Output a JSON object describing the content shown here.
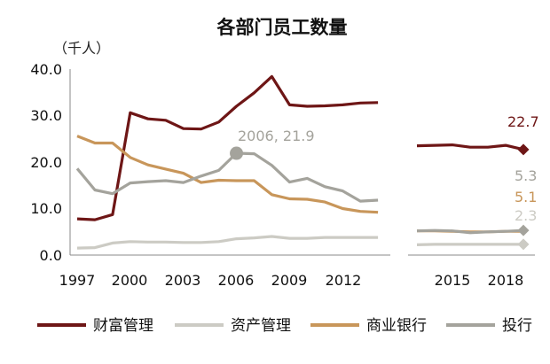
{
  "chart_data": {
    "type": "line",
    "title": "各部门员工数量",
    "unit_label": "（千人）",
    "ylim": [
      0,
      40
    ],
    "y_ticks": [
      "0.0",
      "10.0",
      "20.0",
      "30.0",
      "40.0"
    ],
    "x_ticks": [
      "1997",
      "2000",
      "2003",
      "2006",
      "2009",
      "2012",
      "2015",
      "2018"
    ],
    "grid": false,
    "legend_placement": "bottom",
    "series": [
      {
        "name": "财富管理",
        "color": "#6e1616",
        "segments": [
          [
            [
              1997,
              7.8
            ],
            [
              1998,
              7.6
            ],
            [
              1999,
              8.7
            ],
            [
              2000,
              30.6
            ],
            [
              2001,
              29.3
            ],
            [
              2002,
              29.0
            ],
            [
              2003,
              27.2
            ],
            [
              2004,
              27.1
            ],
            [
              2005,
              28.6
            ],
            [
              2006,
              32.0
            ],
            [
              2007,
              34.9
            ],
            [
              2008,
              38.4
            ],
            [
              2009,
              32.3
            ],
            [
              2010,
              32.0
            ],
            [
              2011,
              32.1
            ],
            [
              2012,
              32.3
            ],
            [
              2013,
              32.7
            ],
            [
              2014,
              32.8
            ]
          ],
          [
            [
              2014,
              23.5
            ],
            [
              2015,
              23.6
            ],
            [
              2016,
              23.7
            ],
            [
              2017,
              23.2
            ],
            [
              2018,
              23.2
            ],
            [
              2019,
              23.6
            ],
            [
              2020,
              22.7
            ]
          ]
        ],
        "end_marker": "diamond"
      },
      {
        "name": "资产管理",
        "color": "#cccbc4",
        "segments": [
          [
            [
              1997,
              1.5
            ],
            [
              1998,
              1.6
            ],
            [
              1999,
              2.6
            ],
            [
              2000,
              2.9
            ],
            [
              2001,
              2.8
            ],
            [
              2002,
              2.8
            ],
            [
              2003,
              2.7
            ],
            [
              2004,
              2.7
            ],
            [
              2005,
              2.9
            ],
            [
              2006,
              3.5
            ],
            [
              2007,
              3.7
            ],
            [
              2008,
              4.0
            ],
            [
              2009,
              3.6
            ],
            [
              2010,
              3.6
            ],
            [
              2011,
              3.8
            ],
            [
              2012,
              3.8
            ],
            [
              2013,
              3.8
            ],
            [
              2014,
              3.8
            ]
          ],
          [
            [
              2014,
              2.2
            ],
            [
              2015,
              2.3
            ],
            [
              2016,
              2.3
            ],
            [
              2017,
              2.3
            ],
            [
              2018,
              2.3
            ],
            [
              2019,
              2.3
            ],
            [
              2020,
              2.3
            ]
          ]
        ],
        "end_marker": "diamond"
      },
      {
        "name": "商业银行",
        "color": "#c8965a",
        "segments": [
          [
            [
              1997,
              25.6
            ],
            [
              1998,
              24.1
            ],
            [
              1999,
              24.1
            ],
            [
              2000,
              21.0
            ],
            [
              2001,
              19.4
            ],
            [
              2002,
              18.5
            ],
            [
              2003,
              17.6
            ],
            [
              2004,
              15.6
            ],
            [
              2005,
              16.1
            ],
            [
              2006,
              16.0
            ],
            [
              2007,
              16.0
            ],
            [
              2008,
              13.0
            ],
            [
              2009,
              12.1
            ],
            [
              2010,
              12.0
            ],
            [
              2011,
              11.4
            ],
            [
              2012,
              10.0
            ],
            [
              2013,
              9.4
            ],
            [
              2014,
              9.2
            ]
          ],
          [
            [
              2014,
              5.2
            ],
            [
              2015,
              5.2
            ],
            [
              2016,
              5.1
            ],
            [
              2017,
              5.0
            ],
            [
              2018,
              5.0
            ],
            [
              2019,
              5.1
            ],
            [
              2020,
              5.1
            ]
          ]
        ]
      },
      {
        "name": "投行",
        "color": "#a4a39c",
        "segments": [
          [
            [
              1997,
              18.6
            ],
            [
              1998,
              14.0
            ],
            [
              1999,
              13.2
            ],
            [
              2000,
              15.5
            ],
            [
              2001,
              15.8
            ],
            [
              2002,
              16.0
            ],
            [
              2003,
              15.6
            ],
            [
              2004,
              17.0
            ],
            [
              2005,
              18.2
            ],
            [
              2006,
              21.9
            ],
            [
              2007,
              21.8
            ],
            [
              2008,
              19.3
            ],
            [
              2009,
              15.7
            ],
            [
              2010,
              16.5
            ],
            [
              2011,
              14.7
            ],
            [
              2012,
              13.8
            ],
            [
              2013,
              11.6
            ],
            [
              2014,
              11.8
            ]
          ],
          [
            [
              2014,
              5.2
            ],
            [
              2015,
              5.3
            ],
            [
              2016,
              5.2
            ],
            [
              2017,
              4.8
            ],
            [
              2018,
              5.0
            ],
            [
              2019,
              5.1
            ],
            [
              2020,
              5.3
            ]
          ]
        ],
        "end_marker": "diamond"
      }
    ],
    "annotations": [
      {
        "text": "2006, 21.9",
        "x": 2006,
        "y": 21.9,
        "series": "投行",
        "color": "#a4a39c",
        "marker": "circle"
      },
      {
        "text": "22.7",
        "series": "财富管理",
        "color": "#6e1616"
      },
      {
        "text": "5.3",
        "series": "投行",
        "color": "#a4a39c"
      },
      {
        "text": "5.1",
        "series": "商业银行",
        "color": "#c8965a"
      },
      {
        "text": "2.3",
        "series": "资产管理",
        "color": "#cccbc4"
      }
    ]
  }
}
